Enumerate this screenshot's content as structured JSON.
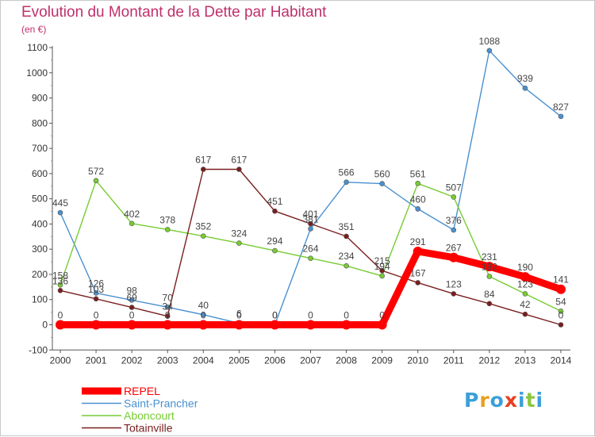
{
  "title": "Evolution du Montant de la Dette par Habitant",
  "subtitle": "(en €)",
  "logo": {
    "letters": [
      "P",
      "r",
      "o",
      "x",
      "i",
      "t",
      "i"
    ],
    "colors": [
      "#3aa0d8",
      "#e8a020",
      "#3aa0d8",
      "#e84020",
      "#3aa0d8",
      "#8cc63f",
      "#3aa0d8"
    ]
  },
  "chart_data": {
    "type": "line",
    "x": [
      2000,
      2001,
      2002,
      2003,
      2004,
      2005,
      2006,
      2007,
      2008,
      2009,
      2010,
      2011,
      2012,
      2013,
      2014
    ],
    "ylim": [
      -100,
      1100
    ],
    "yticks": [
      -100,
      0,
      100,
      200,
      300,
      400,
      500,
      600,
      700,
      800,
      900,
      1000,
      1100
    ],
    "grid": false,
    "legend_position": "bottom-left",
    "series": [
      {
        "name": "REPEL",
        "color": "#ff0000",
        "values": [
          0,
          0,
          0,
          0,
          0,
          0,
          0,
          0,
          0,
          0,
          291,
          267,
          231,
          190,
          141
        ],
        "labels": [
          "0",
          "0",
          "0",
          "0",
          "0",
          "0",
          "0",
          "0",
          "0",
          "0",
          "291",
          "267",
          "231",
          "190",
          "141"
        ]
      },
      {
        "name": "Saint-Prancher",
        "color": "#4a90d0",
        "values": [
          445,
          126,
          98,
          70,
          40,
          6,
          0,
          381,
          566,
          560,
          460,
          376,
          1088,
          939,
          827
        ],
        "labels": [
          "445",
          "126",
          "98",
          "70",
          "40",
          "6",
          "0",
          "381",
          "566",
          "560",
          "460",
          "376",
          "1088",
          "939",
          "827"
        ]
      },
      {
        "name": "Aboncourt",
        "color": "#77cc33",
        "values": [
          158,
          572,
          402,
          378,
          352,
          324,
          294,
          264,
          234,
          194,
          561,
          507,
          192,
          123,
          54
        ],
        "labels": [
          "158",
          "572",
          "402",
          "378",
          "352",
          "324",
          "294",
          "264",
          "234",
          "194",
          "561",
          "507",
          "192",
          "123",
          "54"
        ]
      },
      {
        "name": "Totainville",
        "color": "#7a1e1e",
        "values": [
          136,
          103,
          69,
          34,
          617,
          617,
          451,
          401,
          351,
          215,
          167,
          123,
          84,
          42,
          0
        ],
        "labels": [
          "136",
          "103",
          "69",
          "34",
          "617",
          "617",
          "451",
          "401",
          "351",
          "215",
          "167",
          "123",
          "84",
          "42",
          "0"
        ]
      }
    ]
  }
}
